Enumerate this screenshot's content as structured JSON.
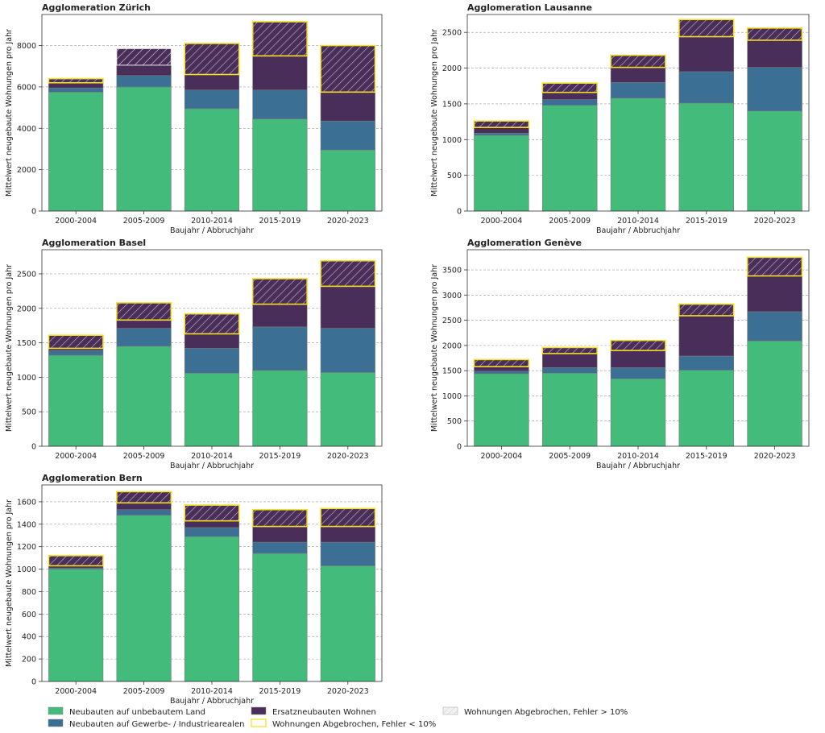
{
  "chart_data": {
    "type": "bar",
    "stacked": true,
    "categories": [
      "2000-2004",
      "2005-2009",
      "2010-2014",
      "2015-2019",
      "2020-2023"
    ],
    "xlabel": "Baujahr / Abbruchjahr",
    "ylabel": "Mittelwert neugebaute Wohnungen pro Jahr",
    "colors": {
      "land": "#43bb7b",
      "industrie": "#3b6f93",
      "ersatz": "#4a2e5a",
      "outline_lt10": "#f5df24",
      "hatch_gt10": "#c9c2cf"
    },
    "legend": {
      "items": [
        {
          "key": "land",
          "label": "Neubauten auf unbebautem Land"
        },
        {
          "key": "industrie",
          "label": "Neubauten auf Gewerbe- / Industriearealen"
        },
        {
          "key": "ersatz",
          "label": "Ersatzneubauten Wohnen"
        },
        {
          "key": "lt10",
          "label": "Wohnungen Abgebrochen, Fehler < 10%"
        },
        {
          "key": "gt10",
          "label": "Wohnungen Abgebrochen, Fehler > 10%"
        }
      ]
    },
    "charts": [
      {
        "title": "Agglomeration Zürich",
        "ylim": [
          0,
          9500
        ],
        "yticks": [
          0,
          2000,
          4000,
          6000,
          8000
        ],
        "series": [
          {
            "key": "land",
            "values": [
              5750,
              6000,
              4950,
              4450,
              2950
            ]
          },
          {
            "key": "industrie",
            "values": [
              200,
              550,
              900,
              1400,
              1400
            ]
          },
          {
            "key": "ersatz",
            "values": [
              250,
              500,
              750,
              1650,
              1400
            ]
          },
          {
            "key": "demolished",
            "values": [
              200,
              800,
              1500,
              1650,
              2250
            ],
            "error_class": [
              "lt10",
              "gt10",
              "lt10",
              "lt10",
              "lt10"
            ]
          }
        ]
      },
      {
        "title": "Agglomeration Lausanne",
        "ylim": [
          0,
          2750
        ],
        "yticks": [
          0,
          500,
          1000,
          1500,
          2000,
          2500
        ],
        "series": [
          {
            "key": "land",
            "values": [
              1060,
              1480,
              1580,
              1510,
              1400
            ]
          },
          {
            "key": "industrie",
            "values": [
              30,
              80,
              220,
              440,
              610
            ]
          },
          {
            "key": "ersatz",
            "values": [
              80,
              100,
              210,
              490,
              380
            ]
          },
          {
            "key": "demolished",
            "values": [
              90,
              130,
              170,
              240,
              170
            ],
            "error_class": [
              "lt10",
              "lt10",
              "lt10",
              "lt10",
              "lt10"
            ]
          }
        ]
      },
      {
        "title": "Agglomeration Basel",
        "ylim": [
          0,
          2850
        ],
        "yticks": [
          0,
          500,
          1000,
          1500,
          2000,
          2500
        ],
        "series": [
          {
            "key": "land",
            "values": [
              1320,
              1450,
              1060,
              1100,
              1070
            ]
          },
          {
            "key": "industrie",
            "values": [
              70,
              260,
              360,
              630,
              640
            ]
          },
          {
            "key": "ersatz",
            "values": [
              30,
              120,
              210,
              330,
              610
            ]
          },
          {
            "key": "demolished",
            "values": [
              190,
              250,
              290,
              370,
              370
            ],
            "error_class": [
              "lt10",
              "lt10",
              "lt10",
              "lt10",
              "lt10"
            ]
          }
        ]
      },
      {
        "title": "Agglomeration Genève",
        "ylim": [
          0,
          3900
        ],
        "yticks": [
          0,
          500,
          1000,
          1500,
          2000,
          2500,
          3000,
          3500
        ],
        "series": [
          {
            "key": "land",
            "values": [
              1440,
              1450,
              1340,
              1510,
              2090
            ]
          },
          {
            "key": "industrie",
            "values": [
              50,
              110,
              220,
              280,
              580
            ]
          },
          {
            "key": "ersatz",
            "values": [
              90,
              280,
              340,
              800,
              710
            ]
          },
          {
            "key": "demolished",
            "values": [
              140,
              120,
              200,
              230,
              370
            ],
            "error_class": [
              "lt10",
              "lt10",
              "lt10",
              "lt10",
              "lt10"
            ]
          }
        ]
      },
      {
        "title": "Agglomeration Bern",
        "ylim": [
          0,
          1750
        ],
        "yticks": [
          0,
          200,
          400,
          600,
          800,
          1000,
          1200,
          1400,
          1600
        ],
        "series": [
          {
            "key": "land",
            "values": [
              1000,
              1480,
              1290,
              1140,
              1030
            ]
          },
          {
            "key": "industrie",
            "values": [
              10,
              50,
              80,
              100,
              210
            ]
          },
          {
            "key": "ersatz",
            "values": [
              20,
              60,
              60,
              140,
              140
            ]
          },
          {
            "key": "demolished",
            "values": [
              90,
              100,
              140,
              150,
              160
            ],
            "error_class": [
              "lt10",
              "lt10",
              "lt10",
              "lt10",
              "lt10"
            ]
          }
        ]
      }
    ]
  }
}
